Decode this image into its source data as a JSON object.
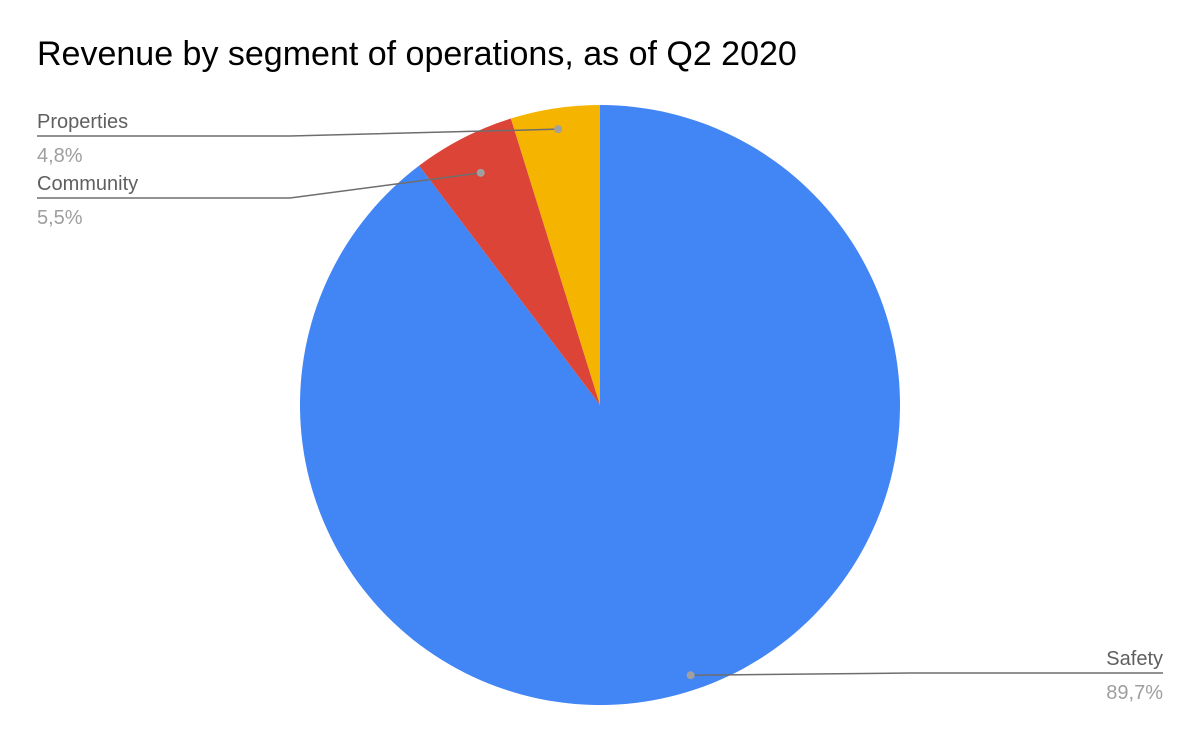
{
  "chart_data": {
    "type": "pie",
    "title": "Revenue by segment of operations, as of Q2 2020",
    "slices": [
      {
        "label": "Safety",
        "value": 89.7,
        "display": "89,7%",
        "color": "#4285f4"
      },
      {
        "label": "Community",
        "value": 5.5,
        "display": "5,5%",
        "color": "#db4437"
      },
      {
        "label": "Properties",
        "value": 4.8,
        "display": "4,8%",
        "color": "#f4b400"
      }
    ],
    "start_angle": "12 o'clock",
    "direction": "clockwise",
    "legend": "none"
  }
}
